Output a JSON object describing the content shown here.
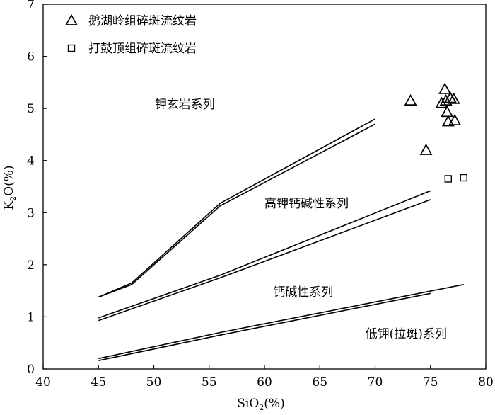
{
  "chart_data": {
    "type": "scatter",
    "xlim": [
      40,
      80
    ],
    "ylim": [
      0,
      7
    ],
    "xticks": [
      40,
      45,
      50,
      55,
      60,
      65,
      70,
      75,
      80
    ],
    "yticks": [
      0,
      1,
      2,
      3,
      4,
      5,
      6,
      7
    ],
    "xlabel": {
      "base": "SiO",
      "sub": "2",
      "tail": "(%)"
    },
    "ylabel": {
      "base": "K",
      "sub": "2",
      "tail": "O(%)"
    },
    "legend_position": "top-left",
    "series": [
      {
        "name": "鹅湖岭组碎斑流纹岩",
        "marker": "triangle",
        "points": [
          [
            73.2,
            5.15
          ],
          [
            74.6,
            4.2
          ],
          [
            76.0,
            5.1
          ],
          [
            76.3,
            5.37
          ],
          [
            76.4,
            5.15
          ],
          [
            76.5,
            4.93
          ],
          [
            76.6,
            4.75
          ],
          [
            76.8,
            5.2
          ],
          [
            77.1,
            5.18
          ],
          [
            77.2,
            4.77
          ]
        ]
      },
      {
        "name": "打鼓顶组碎斑流纹岩",
        "marker": "square",
        "points": [
          [
            76.6,
            3.65
          ],
          [
            78.0,
            3.67
          ]
        ]
      }
    ],
    "boundary_lines": [
      [
        [
          45,
          1.38
        ],
        [
          48,
          1.65
        ],
        [
          56,
          3.18
        ],
        [
          70,
          4.8
        ]
      ],
      [
        [
          45,
          1.38
        ],
        [
          48,
          1.62
        ],
        [
          56,
          3.13
        ],
        [
          70,
          4.7
        ]
      ],
      [
        [
          45,
          0.98
        ],
        [
          56,
          1.8
        ],
        [
          75,
          3.42
        ]
      ],
      [
        [
          45,
          0.93
        ],
        [
          56,
          1.75
        ],
        [
          75,
          3.25
        ]
      ],
      [
        [
          45,
          0.2
        ],
        [
          56,
          0.7
        ],
        [
          78,
          1.62
        ]
      ],
      [
        [
          45,
          0.16
        ],
        [
          56,
          0.65
        ],
        [
          75,
          1.45
        ]
      ]
    ],
    "region_labels": [
      {
        "text": "钾玄岩系列",
        "x": 52.8,
        "y": 5.0
      },
      {
        "text": "高钾钙碱性系列",
        "x": 63.8,
        "y": 3.1
      },
      {
        "text": "钙碱性系列",
        "x": 63.5,
        "y": 1.4
      },
      {
        "text": "低钾(拉斑)系列",
        "x": 72.8,
        "y": 0.6
      }
    ]
  }
}
